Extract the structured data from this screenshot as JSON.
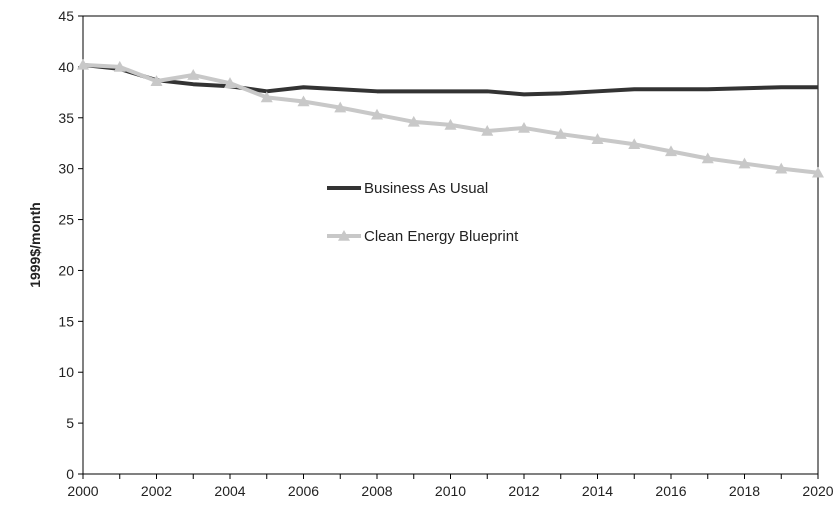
{
  "chart_data": {
    "type": "line",
    "xlabel": "",
    "ylabel": "1999$/month",
    "xlim": [
      2000,
      2020
    ],
    "ylim": [
      0,
      45
    ],
    "xticks": [
      "2000",
      "2002",
      "2004",
      "2006",
      "2008",
      "2010",
      "2012",
      "2014",
      "2016",
      "2018",
      "2020"
    ],
    "yticks": [
      "0",
      "5",
      "10",
      "15",
      "20",
      "25",
      "30",
      "35",
      "40",
      "45"
    ],
    "grid": false,
    "legend_position": "center",
    "series": [
      {
        "name": "Business As Usual",
        "color": "#333333",
        "marker": "none",
        "x": [
          2000,
          2001,
          2002,
          2003,
          2004,
          2005,
          2006,
          2007,
          2008,
          2009,
          2010,
          2011,
          2012,
          2013,
          2014,
          2015,
          2016,
          2017,
          2018,
          2019,
          2020
        ],
        "y": [
          40.2,
          39.8,
          38.7,
          38.3,
          38.1,
          37.6,
          38.0,
          37.8,
          37.6,
          37.6,
          37.6,
          37.6,
          37.3,
          37.4,
          37.6,
          37.8,
          37.8,
          37.8,
          37.9,
          38.0,
          38.0
        ]
      },
      {
        "name": "Clean Energy Blueprint",
        "color": "#c8c8c8",
        "marker": "triangle",
        "x": [
          2000,
          2001,
          2002,
          2003,
          2004,
          2005,
          2006,
          2007,
          2008,
          2009,
          2010,
          2011,
          2012,
          2013,
          2014,
          2015,
          2016,
          2017,
          2018,
          2019,
          2020
        ],
        "y": [
          40.2,
          40.0,
          38.6,
          39.2,
          38.4,
          37.0,
          36.6,
          36.0,
          35.3,
          34.6,
          34.3,
          33.7,
          34.0,
          33.4,
          32.9,
          32.4,
          31.7,
          31.0,
          30.5,
          30.0,
          29.6
        ]
      }
    ]
  }
}
